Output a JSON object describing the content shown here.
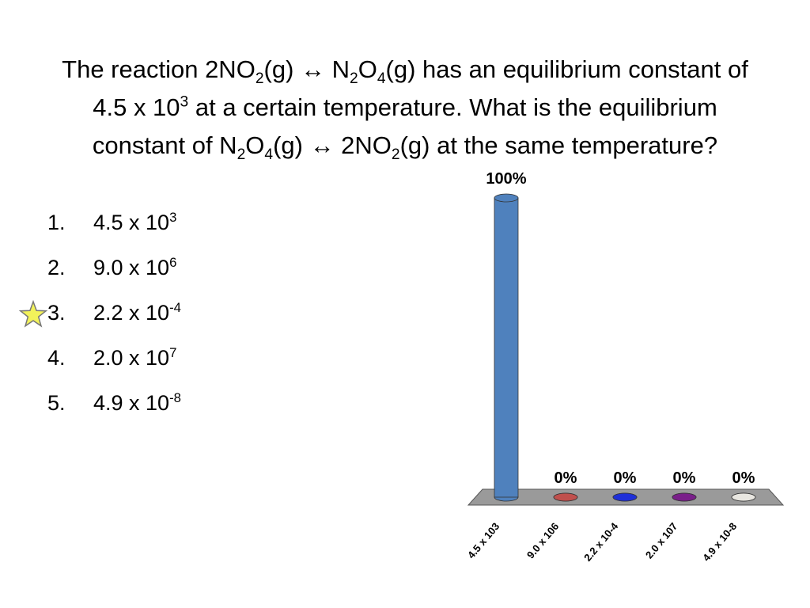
{
  "question": {
    "runs": [
      "The reaction 2NO",
      {
        "sub": "2"
      },
      "(g) ↔ N",
      {
        "sub": "2"
      },
      "O",
      {
        "sub": "4"
      },
      "(g) has an equilibrium constant of 4.5 x 10",
      {
        "sup": "3"
      },
      " at a certain temperature.  What is the equilibrium constant of N",
      {
        "sub": "2"
      },
      "O",
      {
        "sub": "4"
      },
      "(g) ↔ 2NO",
      {
        "sub": "2"
      },
      "(g) at the same temperature?"
    ]
  },
  "options": [
    {
      "number": "1.",
      "runs": [
        "4.5 x 10",
        {
          "sup": "3"
        }
      ]
    },
    {
      "number": "2.",
      "runs": [
        "9.0 x 10",
        {
          "sup": "6"
        }
      ]
    },
    {
      "number": "3.",
      "runs": [
        "2.2 x 10",
        {
          "sup": "-4"
        }
      ],
      "marked": true
    },
    {
      "number": "4.",
      "runs": [
        "2.0 x 10",
        {
          "sup": "7"
        }
      ]
    },
    {
      "number": "5.",
      "runs": [
        "4.9 x 10",
        {
          "sup": "-8"
        }
      ]
    }
  ],
  "chart_data": {
    "type": "bar",
    "categories": [
      "4.5 x 103",
      "9.0 x 106",
      "2.2 x 10-4",
      "2.0 x 107",
      "4.9 x 10-8"
    ],
    "values": [
      100,
      0,
      0,
      0,
      0
    ],
    "value_labels": [
      "100%",
      "0%",
      "0%",
      "0%",
      "0%"
    ],
    "colors": [
      "#4f81bd",
      "#c0504d",
      "#1f2fd8",
      "#7a1f8a",
      "#e8e6e0"
    ]
  }
}
